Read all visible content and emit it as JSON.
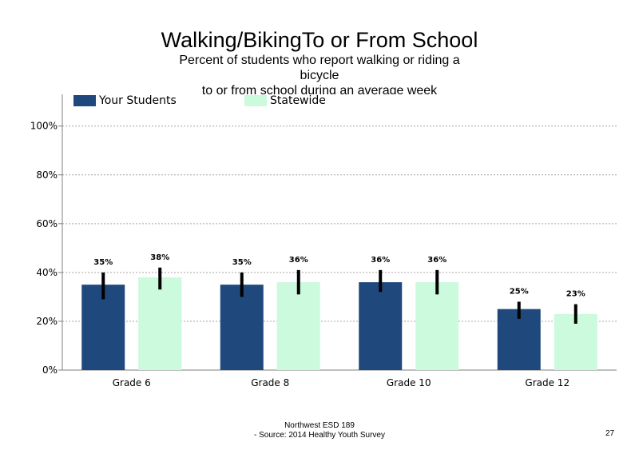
{
  "title": "Walking/BikingTo or From School",
  "subtitle_lines": [
    "Percent of students who report walking  or riding a",
    "bicycle",
    "to or from school during an average  week"
  ],
  "footer": {
    "line1": "Northwest ESD  189",
    "line2": "- Source: 2014 Healthy  Youth Survey"
  },
  "page_number": "27",
  "colors": {
    "your_students": "#1f497d",
    "statewide": "#ccfadc",
    "error_bar": "#000000",
    "gridline": "#a6a6a6",
    "axis": "#7f7f7f"
  },
  "chart_data": {
    "type": "bar",
    "title": "Walking/BikingTo or From School",
    "categories": [
      "Grade 6",
      "Grade 8",
      "Grade 10",
      "Grade 12"
    ],
    "series": [
      {
        "name": "Your Students",
        "values": [
          35,
          35,
          36,
          25
        ],
        "labels": [
          "35%",
          "35%",
          "36%",
          "25%"
        ],
        "error_low": [
          29,
          30,
          32,
          21
        ],
        "error_high": [
          40,
          40,
          41,
          28
        ]
      },
      {
        "name": "Statewide",
        "values": [
          38,
          36,
          36,
          23
        ],
        "labels": [
          "38%",
          "36%",
          "36%",
          "23%"
        ],
        "error_low": [
          33,
          31,
          31,
          19
        ],
        "error_high": [
          42,
          41,
          41,
          27
        ]
      }
    ],
    "ylim": [
      0,
      113
    ],
    "yticks": [
      0,
      20,
      40,
      60,
      80,
      100
    ],
    "ytick_labels": [
      "0%",
      "20%",
      "40%",
      "60%",
      "80%",
      "100%"
    ],
    "grid": "horizontal dotted",
    "legend_position": "top-left",
    "error_bars": true
  }
}
